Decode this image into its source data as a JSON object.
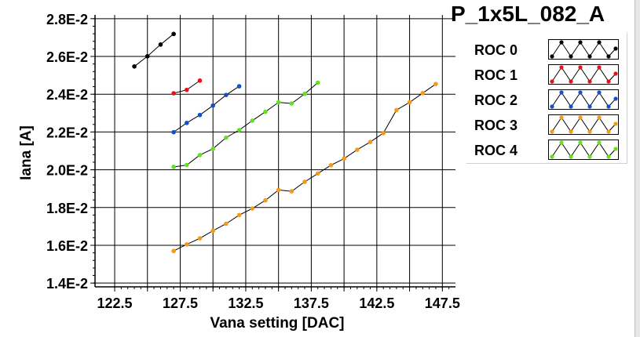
{
  "chart_data": {
    "type": "line",
    "title": "P_1x5L_082_A",
    "xlabel": "Vana setting [DAC]",
    "ylabel": "Iana [A]",
    "xlim": [
      121,
      148.5
    ],
    "ylim": [
      0.0138,
      0.0282
    ],
    "xticks": [
      122.5,
      127.5,
      132.5,
      137.5,
      142.5,
      147.5
    ],
    "xtick_labels": [
      "122.5",
      "127.5",
      "132.5",
      "137.5",
      "142.5",
      "147.5"
    ],
    "yticks": [
      0.014,
      0.016,
      0.018,
      0.02,
      0.022,
      0.024,
      0.026,
      0.028
    ],
    "ytick_labels": [
      "1.4E-2",
      "1.6E-2",
      "1.8E-2",
      "2.0E-2",
      "2.2E-2",
      "2.4E-2",
      "2.6E-2",
      "2.8E-2"
    ],
    "grid": true,
    "legend_position": "right",
    "series": [
      {
        "name": "ROC 0",
        "color": "#000000",
        "x": [
          124,
          125,
          126,
          127
        ],
        "y": [
          0.02547,
          0.02601,
          0.02663,
          0.02719
        ]
      },
      {
        "name": "ROC 1",
        "color": "#e8101a",
        "x": [
          127,
          128,
          129
        ],
        "y": [
          0.02405,
          0.02423,
          0.02472
        ]
      },
      {
        "name": "ROC 2",
        "color": "#1450c8",
        "x": [
          127,
          128,
          129,
          130,
          131,
          132
        ],
        "y": [
          0.02199,
          0.02248,
          0.0229,
          0.0234,
          0.02396,
          0.02442
        ]
      },
      {
        "name": "ROC 3",
        "color": "#f49a18",
        "x": [
          127,
          128,
          129,
          130,
          131,
          132,
          133,
          134,
          135,
          136,
          137,
          138,
          139,
          140,
          141,
          142,
          143,
          144,
          145,
          146,
          147
        ],
        "y": [
          0.0157,
          0.01605,
          0.01637,
          0.01677,
          0.01714,
          0.0176,
          0.01795,
          0.01838,
          0.01893,
          0.01886,
          0.01936,
          0.0198,
          0.02024,
          0.02059,
          0.02106,
          0.02147,
          0.02194,
          0.02316,
          0.02357,
          0.02406,
          0.02454
        ]
      },
      {
        "name": "ROC 4",
        "color": "#64e11e",
        "x": [
          127,
          128,
          129,
          130,
          131,
          132,
          133,
          134,
          135,
          136,
          137,
          138
        ],
        "y": [
          0.02015,
          0.02025,
          0.02078,
          0.02111,
          0.0217,
          0.0221,
          0.0226,
          0.02307,
          0.02357,
          0.02351,
          0.02402,
          0.02461
        ]
      }
    ]
  }
}
